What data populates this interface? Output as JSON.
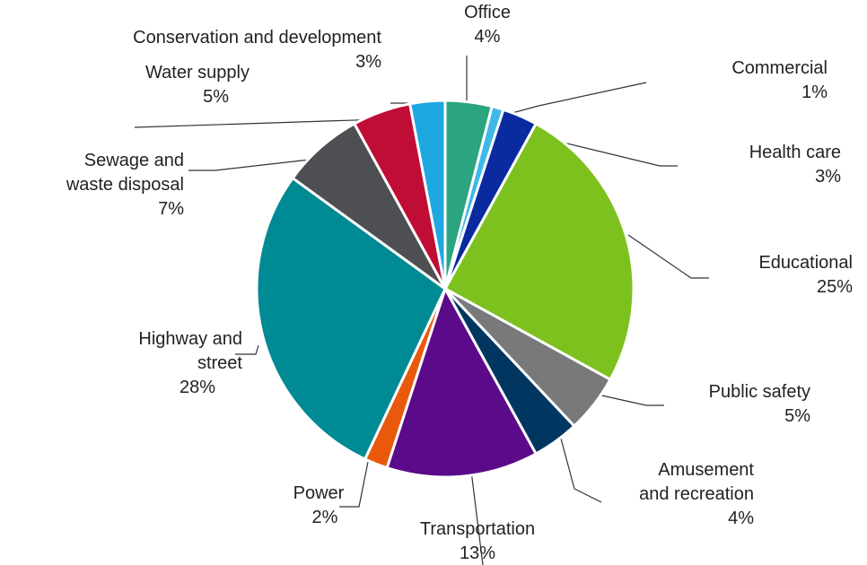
{
  "chart_data": {
    "type": "pie",
    "categories": [
      "Office",
      "Commercial",
      "Health care",
      "Educational",
      "Public safety",
      "Amusement and recreation",
      "Transportation",
      "Power",
      "Highway and street",
      "Sewage and waste disposal",
      "Water supply",
      "Conservation and development"
    ],
    "values": [
      4,
      1,
      3,
      25,
      5,
      4,
      13,
      2,
      28,
      7,
      5,
      3
    ],
    "value_labels": [
      "4%",
      "1%",
      "3%",
      "25%",
      "5%",
      "4%",
      "13%",
      "2%",
      "28%",
      "7%",
      "5%",
      "3%"
    ],
    "colors": [
      "#2aa57f",
      "#3fb8e8",
      "#0a2aa0",
      "#7dc11f",
      "#77797b",
      "#003660",
      "#5b0a8a",
      "#e8590c",
      "#008a93",
      "#4d4f53",
      "#c00d35",
      "#1fa8e0"
    ]
  }
}
